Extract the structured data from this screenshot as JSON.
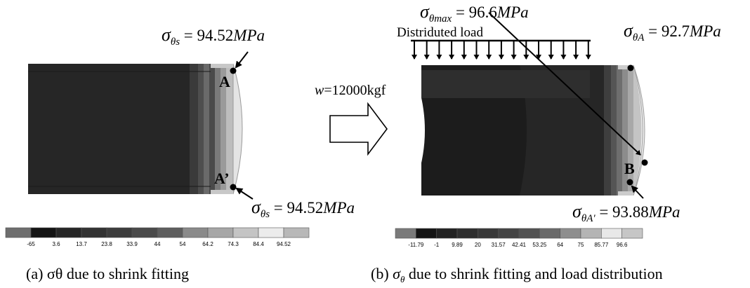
{
  "panel_a": {
    "callout_top": {
      "symbol": "σ",
      "sub": "θs",
      "value": " = 94.52",
      "unit": "MPa"
    },
    "callout_bottom": {
      "symbol": "σ",
      "sub": "θs",
      "value": " = 94.52",
      "unit": "MPa"
    },
    "point_a": "A",
    "point_a_prime": "A’",
    "colorbar_ticks": [
      "-65",
      "3.6",
      "13.7",
      "23.8",
      "33.9",
      "44",
      "54",
      "64.2",
      "74.3",
      "84.4",
      "94.52"
    ],
    "colorbar_colors": [
      "#6e6e6e",
      "#141414",
      "#262626",
      "#323232",
      "#3c3c3c",
      "#4a4a4a",
      "#5e5e5e",
      "#8a8a8a",
      "#a6a6a6",
      "#c4c4c4",
      "#ececec",
      "#b8b8b8"
    ],
    "caption_prefix": "(a) ",
    "caption_symbol": "σθ",
    "caption_text": " due to shrink fitting"
  },
  "panel_b": {
    "callout_max": {
      "symbol": "σ",
      "sub": "θmax",
      "value": " = 96.6",
      "unit": "MPa"
    },
    "callout_a": {
      "symbol": "σ",
      "sub": "θA",
      "value": " = 92.7",
      "unit": "MPa"
    },
    "callout_a_prime": {
      "symbol": "σ",
      "sub": "θA'",
      "value": " = 93.88",
      "unit": "MPa"
    },
    "load_label": "Distriduted load",
    "weight_symbol": "w",
    "weight_value": "=12000kgf",
    "point_b": "B",
    "colorbar_ticks": [
      "-11.79",
      "-1",
      "9.89",
      "20",
      "31.57",
      "42.41",
      "53.25",
      "64",
      "75",
      "85.77",
      "96.6"
    ],
    "colorbar_colors": [
      "#7a7a7a",
      "#141414",
      "#222222",
      "#2e2e2e",
      "#383838",
      "#444444",
      "#525252",
      "#6a6a6a",
      "#8e8e8e",
      "#b4b4b4",
      "#e8e8e8",
      "#c6c6c6"
    ],
    "caption_prefix": "(b)  ",
    "caption_symbol": "σ",
    "caption_sub": "θ",
    "caption_text": " due to shrink fitting and load distribution"
  }
}
